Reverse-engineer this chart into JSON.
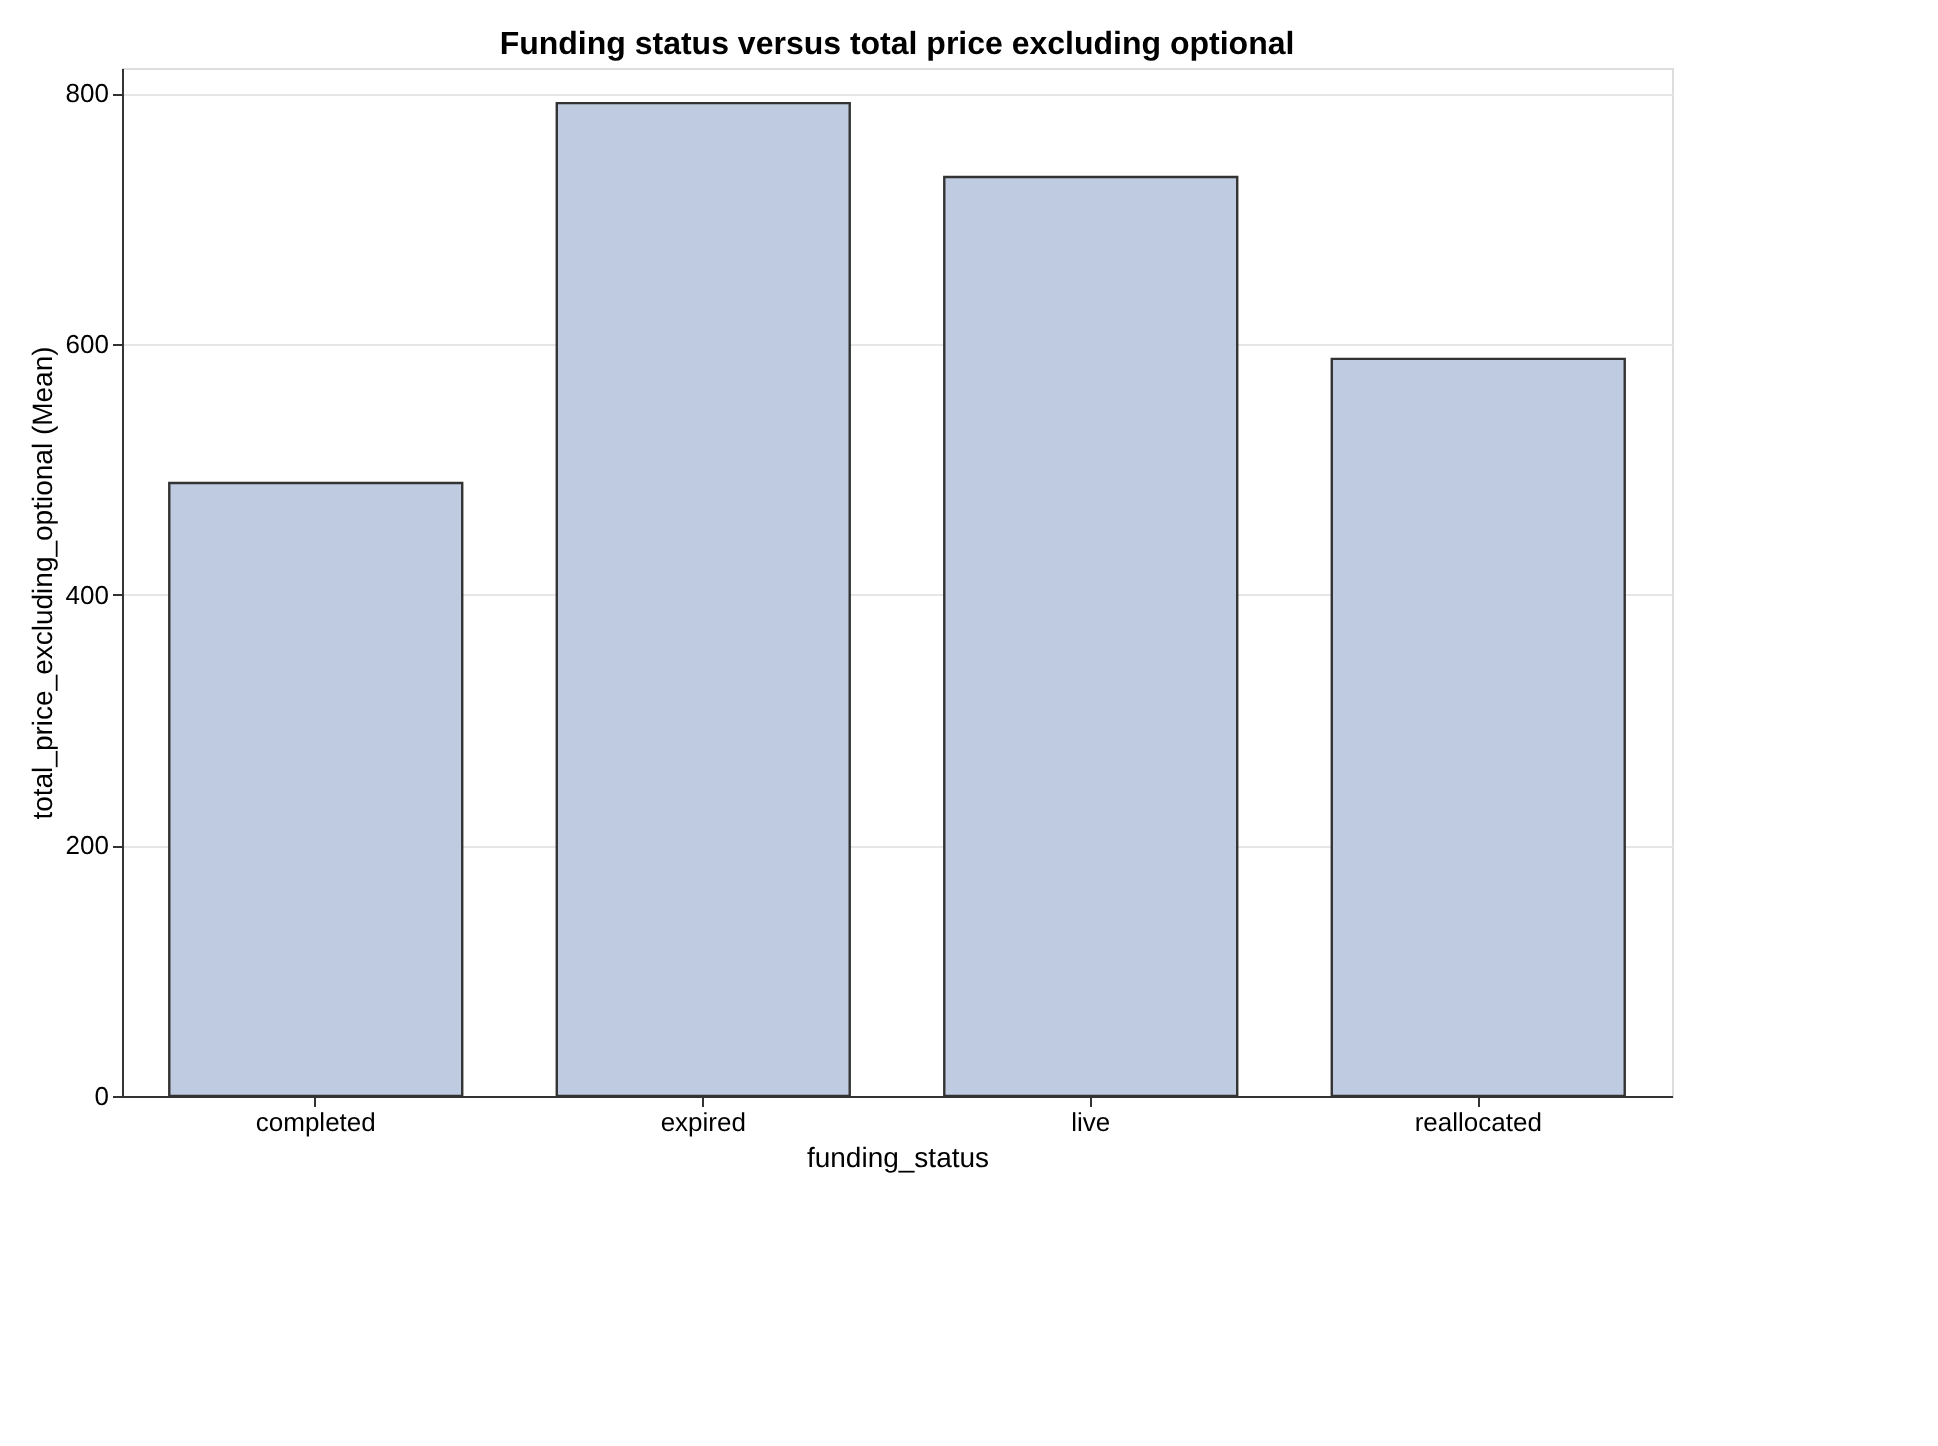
{
  "chart_data": {
    "type": "bar",
    "title": "Funding status versus total price excluding optional",
    "xlabel": "funding_status",
    "ylabel": "total_price_excluding_optional (Mean)",
    "categories": [
      "completed",
      "expired",
      "live",
      "reallocated"
    ],
    "values": [
      489,
      792,
      733,
      588
    ],
    "color": "#bfcbe1",
    "ylim": [
      0,
      820
    ],
    "yticks": [
      0,
      200,
      400,
      600,
      800
    ],
    "grid": "y"
  }
}
